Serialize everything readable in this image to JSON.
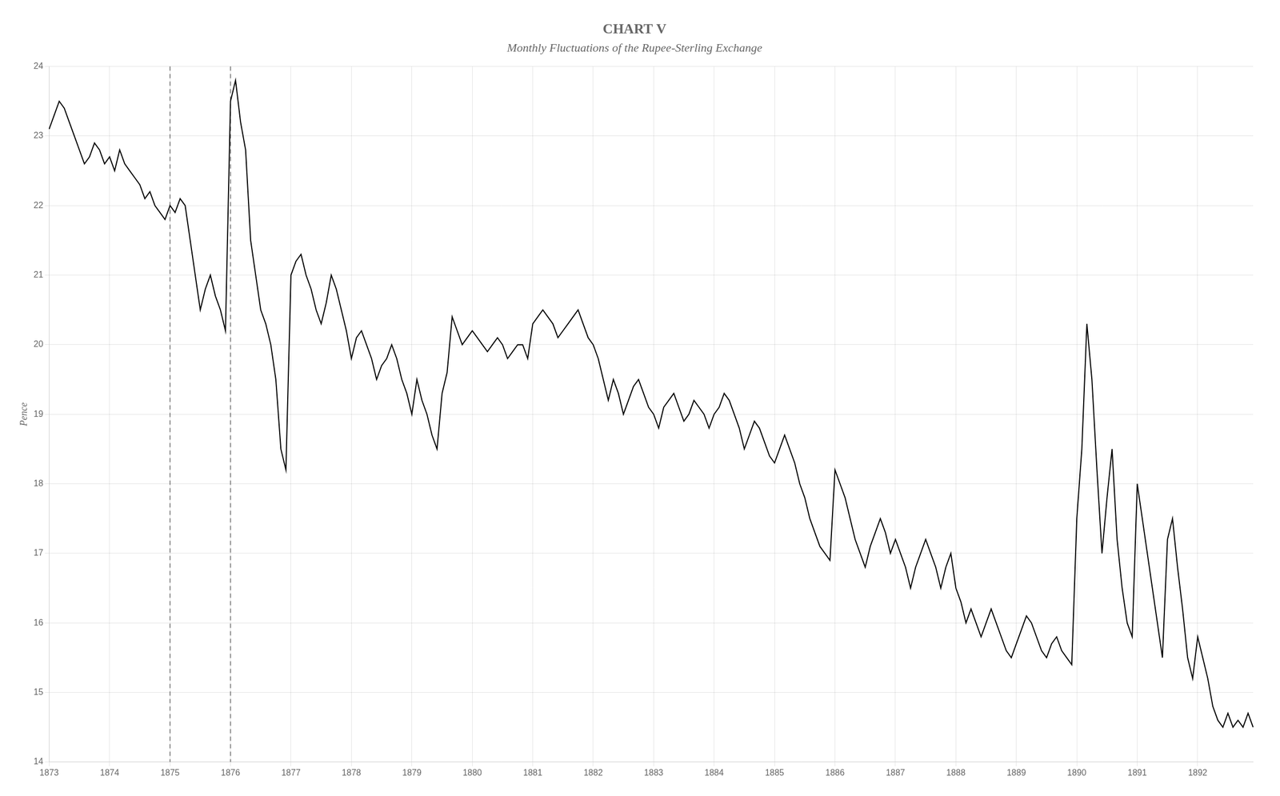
{
  "chart_data": {
    "type": "line",
    "title": "CHART V",
    "subtitle": "Monthly Fluctuations of the Rupee-Sterling Exchange",
    "y_label": "Pence",
    "color": "#000000",
    "ylim": [
      14,
      24
    ],
    "yticks": [
      14,
      15,
      16,
      17,
      18,
      19,
      20,
      21,
      22,
      23,
      24
    ],
    "grid": true,
    "vlines": [
      "1875",
      "1876"
    ],
    "line_style": "solid",
    "categories": [
      "1873",
      null,
      null,
      null,
      null,
      null,
      null,
      null,
      null,
      null,
      null,
      null,
      "1874",
      null,
      null,
      null,
      null,
      null,
      null,
      null,
      null,
      null,
      null,
      null,
      "1875",
      null,
      null,
      null,
      null,
      null,
      null,
      null,
      null,
      null,
      null,
      null,
      "1876",
      null,
      null,
      null,
      null,
      null,
      null,
      null,
      null,
      null,
      null,
      null,
      "1877",
      null,
      null,
      null,
      null,
      null,
      null,
      null,
      null,
      null,
      null,
      null,
      "1878",
      null,
      null,
      null,
      null,
      null,
      null,
      null,
      null,
      null,
      null,
      null,
      "1879",
      null,
      null,
      null,
      null,
      null,
      null,
      null,
      null,
      null,
      null,
      null,
      "1880",
      null,
      null,
      null,
      null,
      null,
      null,
      null,
      null,
      null,
      null,
      null,
      "1881",
      null,
      null,
      null,
      null,
      null,
      null,
      null,
      null,
      null,
      null,
      null,
      "1882",
      null,
      null,
      null,
      null,
      null,
      null,
      null,
      null,
      null,
      null,
      null,
      "1883",
      null,
      null,
      null,
      null,
      null,
      null,
      null,
      null,
      null,
      null,
      null,
      "1884",
      null,
      null,
      null,
      null,
      null,
      null,
      null,
      null,
      null,
      null,
      null,
      "1885",
      null,
      null,
      null,
      null,
      null,
      null,
      null,
      null,
      null,
      null,
      null,
      "1886",
      null,
      null,
      null,
      null,
      null,
      null,
      null,
      null,
      null,
      null,
      null,
      "1887",
      null,
      null,
      null,
      null,
      null,
      null,
      null,
      null,
      null,
      null,
      null,
      "1888",
      null,
      null,
      null,
      null,
      null,
      null,
      null,
      null,
      null,
      null,
      null,
      "1889",
      null,
      null,
      null,
      null,
      null,
      null,
      null,
      null,
      null,
      null,
      null,
      "1890",
      null,
      null,
      null,
      null,
      null,
      null,
      null,
      null,
      null,
      null,
      null,
      "1891",
      null,
      null,
      null,
      null,
      null,
      null,
      null,
      null,
      null,
      null,
      null,
      "1892",
      null,
      null,
      null,
      null,
      null,
      null,
      null,
      null,
      null,
      null,
      null
    ],
    "values": [
      23.1,
      23.3,
      23.5,
      23.4,
      23.2,
      23.0,
      22.8,
      22.6,
      22.7,
      22.9,
      22.8,
      22.6,
      22.7,
      22.5,
      22.8,
      22.6,
      22.5,
      22.4,
      22.3,
      22.1,
      22.2,
      22.0,
      21.9,
      21.8,
      22.0,
      21.9,
      22.1,
      22.0,
      21.5,
      21.0,
      20.5,
      20.8,
      21.0,
      20.7,
      20.5,
      20.2,
      23.5,
      23.8,
      23.2,
      22.8,
      21.5,
      21.0,
      20.5,
      20.3,
      20.0,
      19.5,
      18.5,
      18.2,
      21.0,
      21.2,
      21.3,
      21.0,
      20.8,
      20.5,
      20.3,
      20.6,
      21.0,
      20.8,
      20.5,
      20.2,
      19.8,
      20.1,
      20.2,
      20.0,
      19.8,
      19.5,
      19.7,
      19.8,
      20.0,
      19.8,
      19.5,
      19.3,
      19.0,
      19.5,
      19.2,
      19.0,
      18.7,
      18.5,
      19.3,
      19.6,
      20.4,
      20.2,
      20.0,
      20.1,
      20.2,
      20.1,
      20.0,
      19.9,
      20.0,
      20.1,
      20.0,
      19.8,
      19.9,
      20.0,
      20.0,
      19.8,
      20.3,
      20.4,
      20.5,
      20.4,
      20.3,
      20.1,
      20.2,
      20.3,
      20.4,
      20.5,
      20.3,
      20.1,
      20.0,
      19.8,
      19.5,
      19.2,
      19.5,
      19.3,
      19.0,
      19.2,
      19.4,
      19.5,
      19.3,
      19.1,
      19.0,
      18.8,
      19.1,
      19.2,
      19.3,
      19.1,
      18.9,
      19.0,
      19.2,
      19.1,
      19.0,
      18.8,
      19.0,
      19.1,
      19.3,
      19.2,
      19.0,
      18.8,
      18.5,
      18.7,
      18.9,
      18.8,
      18.6,
      18.4,
      18.3,
      18.5,
      18.7,
      18.5,
      18.3,
      18.0,
      17.8,
      17.5,
      17.3,
      17.1,
      17.0,
      16.9,
      18.2,
      18.0,
      17.8,
      17.5,
      17.2,
      17.0,
      16.8,
      17.1,
      17.3,
      17.5,
      17.3,
      17.0,
      17.2,
      17.0,
      16.8,
      16.5,
      16.8,
      17.0,
      17.2,
      17.0,
      16.8,
      16.5,
      16.8,
      17.0,
      16.5,
      16.3,
      16.0,
      16.2,
      16.0,
      15.8,
      16.0,
      16.2,
      16.0,
      15.8,
      15.6,
      15.5,
      15.7,
      15.9,
      16.1,
      16.0,
      15.8,
      15.6,
      15.5,
      15.7,
      15.8,
      15.6,
      15.5,
      15.4,
      17.5,
      18.5,
      20.3,
      19.5,
      18.2,
      17.0,
      17.8,
      18.5,
      17.2,
      16.5,
      16.0,
      15.8,
      18.0,
      17.5,
      17.0,
      16.5,
      16.0,
      15.5,
      17.2,
      17.5,
      16.8,
      16.2,
      15.5,
      15.2,
      15.8,
      15.5,
      15.2,
      14.8,
      14.6,
      14.5,
      14.7,
      14.5,
      14.6,
      14.5,
      14.7,
      14.5
    ]
  }
}
